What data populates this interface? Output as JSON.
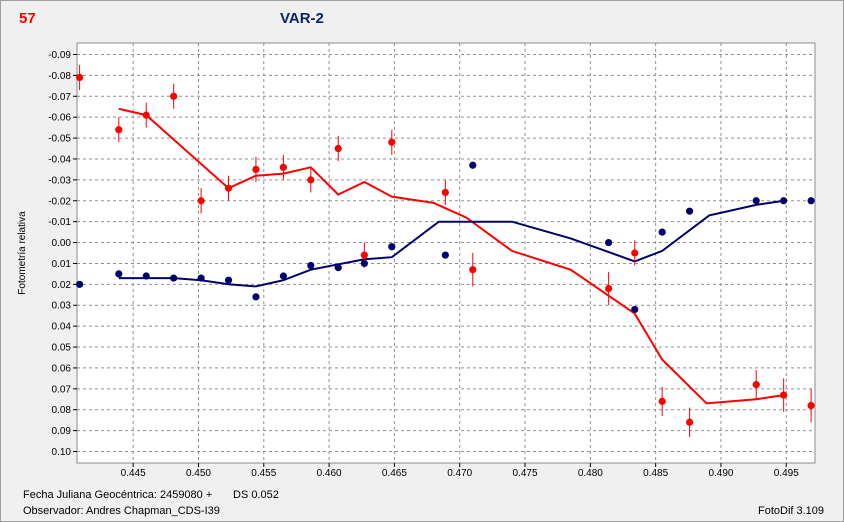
{
  "header": {
    "number": "57",
    "star": "VAR-2"
  },
  "footer": {
    "jd_label": "Fecha Juliana Geocéntrica: 2459080 +",
    "ds": "DS 0.052",
    "observer": "Observador: Andres Chapman_CDS-I39",
    "software": "FotoDif 3.109"
  },
  "colors": {
    "red": "#ff0000",
    "navy": "#00006e",
    "grid": "#909090",
    "background": "#f0f0f0"
  },
  "chart_data": {
    "type": "scatter",
    "title": "VAR-2",
    "xlabel": "Fecha Juliana Geocéntrica: 2459080 +",
    "ylabel": "Fotometría relativa",
    "xlim": [
      0.4407,
      0.4972
    ],
    "ylim": [
      -0.0955,
      0.1055
    ],
    "y_inverted": true,
    "grid": true,
    "x_ticks": [
      0.445,
      0.45,
      0.455,
      0.46,
      0.465,
      0.47,
      0.475,
      0.48,
      0.485,
      0.49,
      0.495
    ],
    "x_tick_labels": [
      "0.445",
      "0.450",
      "0.455",
      "0.460",
      "0.465",
      "0.470",
      "0.475",
      "0.480",
      "0.485",
      "0.490",
      "0.495"
    ],
    "y_ticks": [
      -0.09,
      -0.08,
      -0.07,
      -0.06,
      -0.05,
      -0.04,
      -0.03,
      -0.02,
      -0.01,
      0.0,
      0.01,
      0.02,
      0.03,
      0.04,
      0.05,
      0.06,
      0.07,
      0.08,
      0.09,
      0.1
    ],
    "y_tick_labels": [
      "-0.09",
      "-0.08",
      "-0.07",
      "-0.06",
      "-0.05",
      "-0.04",
      "-0.03",
      "-0.02",
      "-0.01",
      "0.00",
      "0.01",
      "0.02",
      "0.03",
      "0.04",
      "0.05",
      "0.06",
      "0.07",
      "0.08",
      "0.09",
      "0.10"
    ],
    "series": [
      {
        "color": "#ff0000",
        "points": [
          {
            "x": 0.4409,
            "y": -0.079,
            "err": 0.006
          },
          {
            "x": 0.4439,
            "y": -0.054,
            "err": 0.006
          },
          {
            "x": 0.446,
            "y": -0.061,
            "err": 0.006
          },
          {
            "x": 0.4481,
            "y": -0.07,
            "err": 0.006
          },
          {
            "x": 0.4502,
            "y": -0.02,
            "err": 0.006
          },
          {
            "x": 0.4523,
            "y": -0.026,
            "err": 0.006
          },
          {
            "x": 0.4544,
            "y": -0.035,
            "err": 0.006
          },
          {
            "x": 0.4565,
            "y": -0.036,
            "err": 0.006
          },
          {
            "x": 0.4586,
            "y": -0.03,
            "err": 0.006
          },
          {
            "x": 0.4607,
            "y": -0.045,
            "err": 0.006
          },
          {
            "x": 0.4627,
            "y": 0.006,
            "err": 0.006
          },
          {
            "x": 0.4648,
            "y": -0.048,
            "err": 0.006
          },
          {
            "x": 0.4689,
            "y": -0.024,
            "err": 0.006
          },
          {
            "x": 0.471,
            "y": 0.013,
            "err": 0.008
          },
          {
            "x": 0.4814,
            "y": 0.022,
            "err": 0.008
          },
          {
            "x": 0.4834,
            "y": 0.005,
            "err": 0.006
          },
          {
            "x": 0.4855,
            "y": 0.076,
            "err": 0.007
          },
          {
            "x": 0.4876,
            "y": 0.086,
            "err": 0.007
          },
          {
            "x": 0.4927,
            "y": 0.068,
            "err": 0.007
          },
          {
            "x": 0.4948,
            "y": 0.073,
            "err": 0.008
          },
          {
            "x": 0.4969,
            "y": 0.078,
            "err": 0.008
          }
        ],
        "trend": [
          [
            0.4439,
            -0.064
          ],
          [
            0.446,
            -0.061
          ],
          [
            0.4523,
            -0.026
          ],
          [
            0.4544,
            -0.032
          ],
          [
            0.4565,
            -0.033
          ],
          [
            0.4586,
            -0.036
          ],
          [
            0.4607,
            -0.023
          ],
          [
            0.4627,
            -0.029
          ],
          [
            0.4648,
            -0.022
          ],
          [
            0.468,
            -0.019
          ],
          [
            0.4705,
            -0.012
          ],
          [
            0.474,
            0.004
          ],
          [
            0.4785,
            0.013
          ],
          [
            0.4834,
            0.034
          ],
          [
            0.4855,
            0.056
          ],
          [
            0.4889,
            0.077
          ],
          [
            0.4927,
            0.075
          ],
          [
            0.4948,
            0.073
          ]
        ]
      },
      {
        "color": "#00006e",
        "points": [
          {
            "x": 0.4409,
            "y": 0.02
          },
          {
            "x": 0.4439,
            "y": 0.015
          },
          {
            "x": 0.446,
            "y": 0.016
          },
          {
            "x": 0.4481,
            "y": 0.017
          },
          {
            "x": 0.4502,
            "y": 0.017
          },
          {
            "x": 0.4523,
            "y": 0.018
          },
          {
            "x": 0.4544,
            "y": 0.026
          },
          {
            "x": 0.4565,
            "y": 0.016
          },
          {
            "x": 0.4586,
            "y": 0.011
          },
          {
            "x": 0.4607,
            "y": 0.012
          },
          {
            "x": 0.4627,
            "y": 0.01
          },
          {
            "x": 0.4648,
            "y": 0.002
          },
          {
            "x": 0.4689,
            "y": 0.006
          },
          {
            "x": 0.471,
            "y": -0.037
          },
          {
            "x": 0.4814,
            "y": 0.0
          },
          {
            "x": 0.4834,
            "y": 0.032
          },
          {
            "x": 0.4855,
            "y": -0.005
          },
          {
            "x": 0.4876,
            "y": -0.015
          },
          {
            "x": 0.4927,
            "y": -0.02
          },
          {
            "x": 0.4948,
            "y": -0.02
          },
          {
            "x": 0.4969,
            "y": -0.02
          }
        ],
        "trend": [
          [
            0.4439,
            0.017
          ],
          [
            0.4481,
            0.017
          ],
          [
            0.4502,
            0.018
          ],
          [
            0.4523,
            0.02
          ],
          [
            0.4544,
            0.021
          ],
          [
            0.4565,
            0.018
          ],
          [
            0.4586,
            0.013
          ],
          [
            0.4627,
            0.008
          ],
          [
            0.4648,
            0.007
          ],
          [
            0.4684,
            -0.01
          ],
          [
            0.474,
            -0.01
          ],
          [
            0.4785,
            -0.002
          ],
          [
            0.4834,
            0.009
          ],
          [
            0.4855,
            0.004
          ],
          [
            0.4891,
            -0.013
          ],
          [
            0.4927,
            -0.018
          ],
          [
            0.4948,
            -0.02
          ]
        ]
      }
    ]
  }
}
